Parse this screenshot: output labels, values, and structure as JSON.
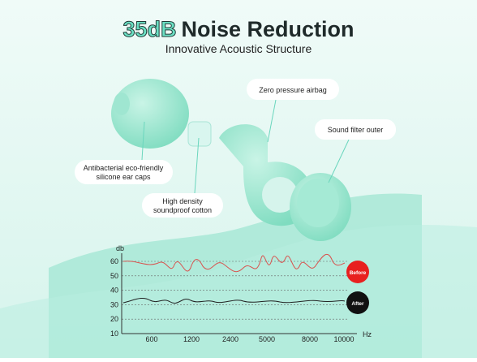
{
  "header": {
    "title_highlight": "35dB",
    "title_rest": "Noise Reduction",
    "subtitle": "Innovative Acoustic Structure"
  },
  "callouts": [
    {
      "lines": [
        "Zero pressure airbag"
      ]
    },
    {
      "lines": [
        "Sound filter outer"
      ]
    },
    {
      "lines": [
        "Antibacterial eco-friendly",
        "silicone ear caps"
      ]
    },
    {
      "lines": [
        "High density",
        "soundproof cotton"
      ]
    }
  ],
  "graph": {
    "y_unit": "db",
    "x_unit": "Hz",
    "yticks": [
      10,
      20,
      30,
      40,
      50,
      60
    ],
    "xticks": [
      "600",
      "1200",
      "2400",
      "5000",
      "8000",
      "10000"
    ],
    "before_label": "Before",
    "after_label": "After"
  }
}
